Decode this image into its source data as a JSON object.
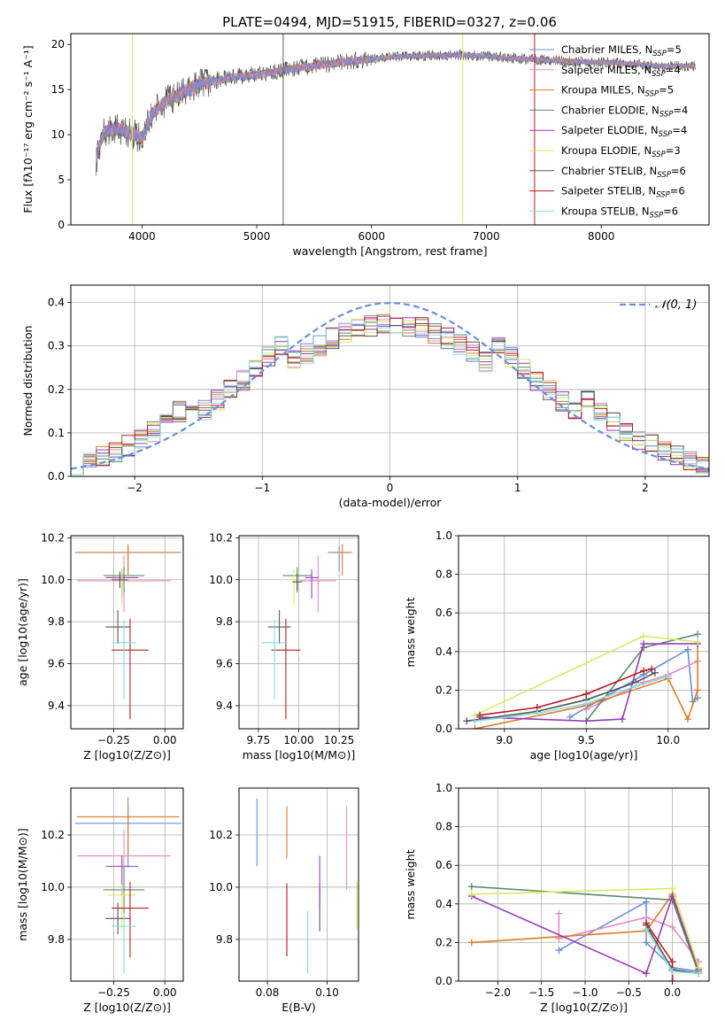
{
  "figure": {
    "title": "PLATE=0494, MJD=51915, FIBERID=0327, z=0.06"
  },
  "model_colors": {
    "Chabrier MILES": "#6a8fdc",
    "Salpeter MILES": "#e98ac8",
    "Kroupa MILES": "#e07b27",
    "Chabrier ELODIE": "#5a8a6a",
    "Salpeter ELODIE": "#9a3ab8",
    "Kroupa ELODIE": "#d5ec60",
    "Chabrier STELIB": "#555555",
    "Salpeter STELIB": "#b71c1c",
    "Kroupa STELIB": "#86dede"
  },
  "chart_data": [
    {
      "id": "spectrum",
      "type": "line",
      "xlabel": "wavelength [Angstrom, rest frame]",
      "ylabel": "Flux [fλ10⁻¹⁷ erg cm⁻² s⁻¹ A⁻¹]",
      "xlim": [
        3380,
        8940
      ],
      "ylim": [
        0,
        21.2
      ],
      "xticks": [
        4000,
        5000,
        6000,
        7000,
        8000
      ],
      "yticks": [
        0,
        5,
        10,
        15,
        20
      ],
      "grid": false,
      "legend_position": "right",
      "continuum_x": [
        3600,
        3650,
        3700,
        3800,
        3900,
        4000,
        4100,
        4200,
        4300,
        4500,
        4800,
        5000,
        5300,
        5600,
        6000,
        6300,
        6600,
        6900,
        7200,
        7500,
        7800,
        8100,
        8400,
        8600,
        8800
      ],
      "continuum_y": [
        7.2,
        9.8,
        10.5,
        10.6,
        10.2,
        9.6,
        12.5,
        13.6,
        14.3,
        15.6,
        16.4,
        16.6,
        17.3,
        17.8,
        18.4,
        18.7,
        18.8,
        18.8,
        18.5,
        18.3,
        18.1,
        18.0,
        17.7,
        17.6,
        17.6
      ],
      "legend": [
        {
          "label": "Chabrier MILES, N",
          "n": "5"
        },
        {
          "label": "Salpeter MILES, N",
          "n": "4"
        },
        {
          "label": "Kroupa MILES, N",
          "n": "5"
        },
        {
          "label": "Chabrier ELODIE, N",
          "n": "4"
        },
        {
          "label": "Salpeter ELODIE, N",
          "n": "4"
        },
        {
          "label": "Kroupa ELODIE, N",
          "n": "3"
        },
        {
          "label": "Chabrier STELIB, N",
          "n": "6"
        },
        {
          "label": "Salpeter STELIB, N",
          "n": "6"
        },
        {
          "label": "Kroupa STELIB, N",
          "n": "6"
        }
      ],
      "legend_sub": "SSP",
      "series_order": [
        "Chabrier MILES",
        "Salpeter MILES",
        "Kroupa MILES",
        "Chabrier ELODIE",
        "Salpeter ELODIE",
        "Kroupa ELODIE",
        "Chabrier STELIB",
        "Salpeter STELIB",
        "Kroupa STELIB"
      ]
    },
    {
      "id": "residuals",
      "type": "histogram",
      "xlabel": "(data-model)/error",
      "ylabel": "Normed distribution",
      "xlim": [
        -2.5,
        2.5
      ],
      "ylim": [
        0,
        0.44
      ],
      "xticks": [
        -2,
        -1,
        0,
        1,
        2
      ],
      "yticks": [
        0.0,
        0.1,
        0.2,
        0.3,
        0.4
      ],
      "grid": true,
      "bin_width": 0.1,
      "gaussian_label": "𝒩(0, 1)",
      "legend_position": "top-right"
    },
    {
      "id": "age_vs_Z",
      "type": "errorbar",
      "xlabel": "Z [log10(Z/Z⊙)]",
      "ylabel": "age  [log10(age/yr)]",
      "xlim": [
        -0.46,
        0.09
      ],
      "ylim": [
        9.29,
        10.21
      ],
      "xticks": [
        -0.25,
        0.0
      ],
      "yticks": [
        9.4,
        9.6,
        9.8,
        10.0,
        10.2
      ],
      "grid": true,
      "points": [
        {
          "model": "Chabrier MILES",
          "x": -0.18,
          "xerr": [
            0.26,
            0.26
          ],
          "y": 10.13,
          "yerr": [
            0.09,
            0.03
          ]
        },
        {
          "model": "Salpeter MILES",
          "x": -0.2,
          "xerr": [
            0.23,
            0.23
          ],
          "y": 9.995,
          "yerr": [
            0.15,
            0.12
          ]
        },
        {
          "model": "Kroupa MILES",
          "x": -0.18,
          "xerr": [
            0.25,
            0.25
          ],
          "y": 10.13,
          "yerr": [
            0.11,
            0.04
          ]
        },
        {
          "model": "Chabrier ELODIE",
          "x": -0.2,
          "xerr": [
            0.1,
            0.1
          ],
          "y": 10.02,
          "yerr": [
            0.08,
            0.04
          ]
        },
        {
          "model": "Salpeter ELODIE",
          "x": -0.21,
          "xerr": [
            0.08,
            0.08
          ],
          "y": 10.01,
          "yerr": [
            0.1,
            0.04
          ]
        },
        {
          "model": "Kroupa ELODIE",
          "x": -0.21,
          "xerr": [
            0.07,
            0.07
          ],
          "y": 10.0,
          "yerr": [
            0.12,
            0.05
          ]
        },
        {
          "model": "Chabrier STELIB",
          "x": -0.23,
          "xerr": [
            0.06,
            0.06
          ],
          "y": 9.775,
          "yerr": [
            0.08,
            0.08
          ]
        },
        {
          "model": "Salpeter STELIB",
          "x": -0.17,
          "xerr": [
            0.09,
            0.09
          ],
          "y": 9.665,
          "yerr": [
            0.33,
            0.15
          ]
        },
        {
          "model": "Kroupa STELIB",
          "x": -0.2,
          "xerr": [
            0.06,
            0.06
          ],
          "y": 9.7,
          "yerr": [
            0.27,
            0.11
          ]
        },
        {
          "model": "Chabrier STELIB",
          "x": -0.22,
          "xerr": [
            0.04,
            0.04
          ],
          "y": 10.0,
          "yerr": [
            0.04,
            0.04
          ]
        }
      ]
    },
    {
      "id": "age_vs_mass",
      "type": "errorbar",
      "xlabel": "mass [log10(M/M⊙)]",
      "ylabel": "",
      "xlim": [
        9.63,
        10.37
      ],
      "ylim": [
        9.29,
        10.21
      ],
      "xticks": [
        9.75,
        10.0,
        10.25
      ],
      "yticks": [
        9.4,
        9.6,
        9.8,
        10.0,
        10.2
      ],
      "grid": true,
      "points": [
        {
          "model": "Chabrier MILES",
          "x": 10.25,
          "xerr": [
            0.07,
            0.07
          ],
          "y": 10.13,
          "yerr": [
            0.09,
            0.03
          ]
        },
        {
          "model": "Salpeter MILES",
          "x": 10.12,
          "xerr": [
            0.11,
            0.11
          ],
          "y": 9.995,
          "yerr": [
            0.15,
            0.12
          ]
        },
        {
          "model": "Kroupa MILES",
          "x": 10.27,
          "xerr": [
            0.06,
            0.06
          ],
          "y": 10.13,
          "yerr": [
            0.11,
            0.04
          ]
        },
        {
          "model": "Chabrier ELODIE",
          "x": 9.99,
          "xerr": [
            0.09,
            0.09
          ],
          "y": 10.02,
          "yerr": [
            0.08,
            0.04
          ]
        },
        {
          "model": "Salpeter ELODIE",
          "x": 10.08,
          "xerr": [
            0.04,
            0.04
          ],
          "y": 10.01,
          "yerr": [
            0.1,
            0.04
          ]
        },
        {
          "model": "Kroupa ELODIE",
          "x": 9.97,
          "xerr": [
            0.04,
            0.04
          ],
          "y": 10.0,
          "yerr": [
            0.12,
            0.05
          ]
        },
        {
          "model": "Chabrier STELIB",
          "x": 9.88,
          "xerr": [
            0.07,
            0.07
          ],
          "y": 9.775,
          "yerr": [
            0.08,
            0.08
          ]
        },
        {
          "model": "Salpeter STELIB",
          "x": 9.92,
          "xerr": [
            0.09,
            0.09
          ],
          "y": 9.665,
          "yerr": [
            0.33,
            0.15
          ]
        },
        {
          "model": "Kroupa STELIB",
          "x": 9.85,
          "xerr": [
            0.08,
            0.08
          ],
          "y": 9.7,
          "yerr": [
            0.27,
            0.11
          ]
        },
        {
          "model": "Chabrier STELIB",
          "x": 9.99,
          "xerr": [
            0.03,
            0.03
          ],
          "y": 9.99,
          "yerr": [
            0.04,
            0.04
          ]
        }
      ]
    },
    {
      "id": "mass_weight_vs_age",
      "type": "line",
      "xlabel": "age  [log10(age/yr)]",
      "ylabel": "mass weight",
      "xlim": [
        8.72,
        10.25
      ],
      "ylim": [
        0,
        1.0
      ],
      "xticks": [
        9.0,
        9.5,
        10.0
      ],
      "yticks": [
        0.0,
        0.2,
        0.4,
        0.6,
        0.8,
        1.0
      ],
      "grid": true,
      "series": [
        {
          "model": "Chabrier MILES",
          "x": [
            9.4,
            9.85,
            10.12,
            10.15,
            10.18
          ],
          "y": [
            0.06,
            0.28,
            0.41,
            0.14,
            0.16
          ]
        },
        {
          "model": "Salpeter MILES",
          "x": [
            9.5,
            9.85,
            10.0,
            10.18
          ],
          "y": [
            0.1,
            0.24,
            0.28,
            0.35
          ]
        },
        {
          "model": "Kroupa MILES",
          "x": [
            8.82,
            9.5,
            10.0,
            10.12,
            10.18,
            10.18
          ],
          "y": [
            0.0,
            0.12,
            0.26,
            0.05,
            0.2,
            0.45
          ]
        },
        {
          "model": "Chabrier ELODIE",
          "x": [
            9.5,
            9.85,
            10.18
          ],
          "y": [
            0.04,
            0.42,
            0.49
          ]
        },
        {
          "model": "Salpeter ELODIE",
          "x": [
            8.85,
            9.5,
            9.72,
            9.85,
            10.18
          ],
          "y": [
            0.06,
            0.04,
            0.05,
            0.44,
            0.44
          ]
        },
        {
          "model": "Kroupa ELODIE",
          "x": [
            8.82,
            9.85,
            10.18
          ],
          "y": [
            0.07,
            0.48,
            0.45
          ]
        },
        {
          "model": "Chabrier STELIB",
          "x": [
            8.77,
            9.2,
            9.5,
            9.8,
            9.92
          ],
          "y": [
            0.04,
            0.09,
            0.15,
            0.24,
            0.29
          ]
        },
        {
          "model": "Salpeter STELIB",
          "x": [
            8.85,
            9.2,
            9.5,
            9.85,
            9.9
          ],
          "y": [
            0.07,
            0.11,
            0.18,
            0.3,
            0.31
          ]
        },
        {
          "model": "Kroupa STELIB",
          "x": [
            8.82,
            9.2,
            9.5,
            9.8,
            10.0
          ],
          "y": [
            0.04,
            0.08,
            0.13,
            0.22,
            0.27
          ]
        }
      ]
    },
    {
      "id": "mass_vs_Z",
      "type": "errorbar",
      "xlabel": "Z [log10(Z/Z⊙)]",
      "ylabel": "mass [log10(M/M⊙)]",
      "xlim": [
        -0.46,
        0.09
      ],
      "ylim": [
        9.64,
        10.38
      ],
      "xticks": [
        -0.25,
        0.0
      ],
      "yticks": [
        9.8,
        10.0,
        10.2
      ],
      "grid": true,
      "points": [
        {
          "model": "Chabrier MILES",
          "x": -0.18,
          "xerr": [
            0.26,
            0.26
          ],
          "y": 10.245,
          "yerr": [
            0.17,
            0.1
          ]
        },
        {
          "model": "Salpeter MILES",
          "x": -0.2,
          "xerr": [
            0.23,
            0.23
          ],
          "y": 10.12,
          "yerr": [
            0.13,
            0.1
          ]
        },
        {
          "model": "Kroupa MILES",
          "x": -0.18,
          "xerr": [
            0.25,
            0.25
          ],
          "y": 10.27,
          "yerr": [
            0.15,
            0.04
          ]
        },
        {
          "model": "Chabrier ELODIE",
          "x": -0.2,
          "xerr": [
            0.1,
            0.1
          ],
          "y": 9.99,
          "yerr": [
            0.09,
            0.09
          ]
        },
        {
          "model": "Salpeter ELODIE",
          "x": -0.21,
          "xerr": [
            0.08,
            0.08
          ],
          "y": 10.08,
          "yerr": [
            0.11,
            0.04
          ]
        },
        {
          "model": "Kroupa ELODIE",
          "x": -0.21,
          "xerr": [
            0.07,
            0.07
          ],
          "y": 9.97,
          "yerr": [
            0.13,
            0.04
          ]
        },
        {
          "model": "Chabrier STELIB",
          "x": -0.23,
          "xerr": [
            0.06,
            0.06
          ],
          "y": 9.88,
          "yerr": [
            0.06,
            0.06
          ]
        },
        {
          "model": "Salpeter STELIB",
          "x": -0.17,
          "xerr": [
            0.09,
            0.09
          ],
          "y": 9.92,
          "yerr": [
            0.19,
            0.1
          ]
        },
        {
          "model": "Kroupa STELIB",
          "x": -0.2,
          "xerr": [
            0.06,
            0.06
          ],
          "y": 9.85,
          "yerr": [
            0.18,
            0.05
          ]
        }
      ]
    },
    {
      "id": "mass_vs_ebv",
      "type": "errorbar",
      "xlabel": "E(B-V)",
      "ylabel": "",
      "xlim": [
        0.0705,
        0.1105
      ],
      "ylim": [
        9.64,
        10.38
      ],
      "xticks": [
        0.08,
        0.1
      ],
      "yticks": [
        9.8,
        10.0,
        10.2
      ],
      "grid": true,
      "points": [
        {
          "model": "Chabrier MILES",
          "x": 0.0765,
          "xerr": [
            0,
            0
          ],
          "y": 10.21,
          "yerr": [
            0.13,
            0.13
          ]
        },
        {
          "model": "Kroupa MILES",
          "x": 0.0865,
          "xerr": [
            0,
            0
          ],
          "y": 10.21,
          "yerr": [
            0.1,
            0.1
          ]
        },
        {
          "model": "Salpeter STELIB",
          "x": 0.0865,
          "xerr": [
            0,
            0
          ],
          "y": 9.875,
          "yerr": [
            0.14,
            0.14
          ]
        },
        {
          "model": "Kroupa STELIB",
          "x": 0.0935,
          "xerr": [
            0,
            0
          ],
          "y": 9.79,
          "yerr": [
            0.12,
            0.12
          ]
        },
        {
          "model": "Chabrier STELIB",
          "x": 0.0975,
          "xerr": [
            0,
            0
          ],
          "y": 9.92,
          "yerr": [
            0.09,
            0.09
          ]
        },
        {
          "model": "Salpeter ELODIE",
          "x": 0.0975,
          "xerr": [
            0,
            0
          ],
          "y": 10.02,
          "yerr": [
            0.1,
            0.1
          ]
        },
        {
          "model": "Salpeter MILES",
          "x": 0.1065,
          "xerr": [
            0,
            0
          ],
          "y": 10.15,
          "yerr": [
            0.16,
            0.16
          ]
        },
        {
          "model": "Kroupa ELODIE",
          "x": 0.11,
          "xerr": [
            0,
            0
          ],
          "y": 9.93,
          "yerr": [
            0.09,
            0.09
          ]
        }
      ]
    },
    {
      "id": "mass_weight_vs_Z",
      "type": "line",
      "xlabel": "Z [log10(Z/Z⊙)]",
      "ylabel": "mass weight",
      "xlim": [
        -2.45,
        0.42
      ],
      "ylim": [
        0,
        1.0
      ],
      "xticks": [
        -2.0,
        -1.5,
        -1.0,
        -0.5,
        0.0
      ],
      "yticks": [
        0.0,
        0.2,
        0.4,
        0.6,
        0.8,
        1.0
      ],
      "grid": true,
      "series": [
        {
          "model": "Chabrier MILES",
          "x": [
            -1.3,
            -0.3,
            -0.3,
            0.0,
            0.3
          ],
          "y": [
            0.16,
            0.41,
            0.2,
            0.07,
            0.05
          ]
        },
        {
          "model": "Salpeter MILES",
          "x": [
            -1.3,
            -1.3,
            -0.3,
            0.0,
            0.3
          ],
          "y": [
            0.35,
            0.22,
            0.33,
            0.28,
            0.1
          ]
        },
        {
          "model": "Kroupa MILES",
          "x": [
            -2.3,
            -0.3,
            0.0,
            0.3
          ],
          "y": [
            0.2,
            0.26,
            0.45,
            0.05
          ]
        },
        {
          "model": "Chabrier ELODIE",
          "x": [
            -2.3,
            0.0,
            0.3
          ],
          "y": [
            0.49,
            0.42,
            0.04
          ]
        },
        {
          "model": "Salpeter ELODIE",
          "x": [
            -2.3,
            -0.3,
            0.0,
            0.3
          ],
          "y": [
            0.44,
            0.04,
            0.44,
            0.06
          ]
        },
        {
          "model": "Kroupa ELODIE",
          "x": [
            -2.3,
            0.0,
            0.3
          ],
          "y": [
            0.45,
            0.48,
            0.07
          ]
        },
        {
          "model": "Chabrier STELIB",
          "x": [
            -0.3,
            0.0,
            0.3
          ],
          "y": [
            0.29,
            0.06,
            0.04
          ]
        },
        {
          "model": "Salpeter STELIB",
          "x": [
            -0.3,
            0.0,
            0.0
          ],
          "y": [
            0.3,
            0.1,
            0.0
          ]
        },
        {
          "model": "Kroupa STELIB",
          "x": [
            -0.3,
            0.0,
            0.3
          ],
          "y": [
            0.27,
            0.05,
            0.04
          ]
        }
      ]
    }
  ]
}
